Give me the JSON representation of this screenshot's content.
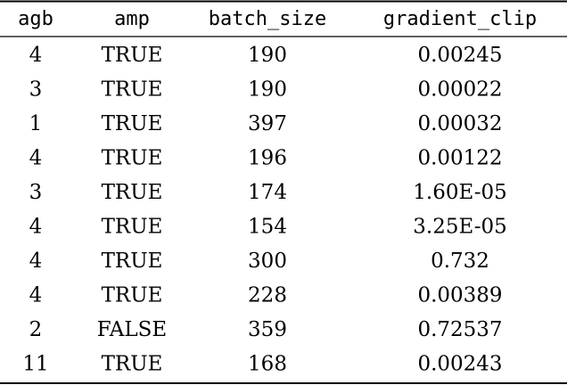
{
  "table": {
    "header": [
      "agb",
      "amp",
      "batch_size",
      "gradient_clip"
    ],
    "rows": [
      [
        4,
        "TRUE",
        190,
        "0.00245"
      ],
      [
        3,
        "TRUE",
        190,
        "0.00022"
      ],
      [
        1,
        "TRUE",
        397,
        "0.00032"
      ],
      [
        4,
        "TRUE",
        196,
        "0.00122"
      ],
      [
        3,
        "TRUE",
        174,
        "1.60E-05"
      ],
      [
        4,
        "TRUE",
        154,
        "3.25E-05"
      ],
      [
        4,
        "TRUE",
        300,
        "0.732"
      ],
      [
        4,
        "TRUE",
        228,
        "0.00389"
      ],
      [
        2,
        "FALSE",
        359,
        "0.72537"
      ],
      [
        11,
        "TRUE",
        168,
        "0.00243"
      ]
    ]
  }
}
